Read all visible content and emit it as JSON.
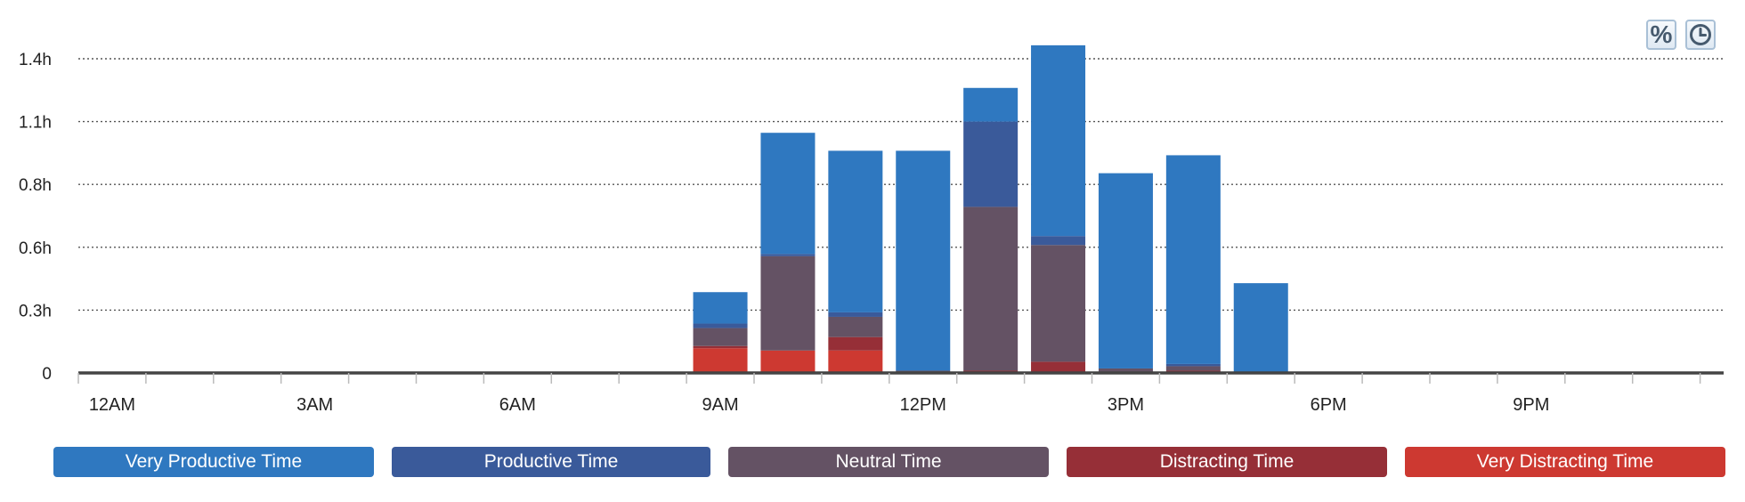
{
  "toolbar": {
    "percent_label": "%",
    "percent_icon": "percent-icon",
    "clock_icon": "clock-icon"
  },
  "chart_data": {
    "type": "bar",
    "stacked": true,
    "grid": true,
    "legend_position": "bottom",
    "ylim": [
      0,
      1.4
    ],
    "y_ticks": [
      {
        "value": 0,
        "label": "0"
      },
      {
        "value": 0.28,
        "label": "0.3h"
      },
      {
        "value": 0.56,
        "label": "0.6h"
      },
      {
        "value": 0.84,
        "label": "0.8h"
      },
      {
        "value": 1.12,
        "label": "1.1h"
      },
      {
        "value": 1.4,
        "label": "1.4h"
      }
    ],
    "x_tick_labels": [
      {
        "hour": 0,
        "label": "12AM"
      },
      {
        "hour": 3,
        "label": "3AM"
      },
      {
        "hour": 6,
        "label": "6AM"
      },
      {
        "hour": 9,
        "label": "9AM"
      },
      {
        "hour": 12,
        "label": "12PM"
      },
      {
        "hour": 15,
        "label": "3PM"
      },
      {
        "hour": 18,
        "label": "6PM"
      },
      {
        "hour": 21,
        "label": "9PM"
      }
    ],
    "categories": [
      0,
      1,
      2,
      3,
      4,
      5,
      6,
      7,
      8,
      9,
      10,
      11,
      12,
      13,
      14,
      15,
      16,
      17,
      18,
      19,
      20,
      21,
      22,
      23
    ],
    "series": [
      {
        "name": "Very Distracting Time",
        "color": "#cd3931",
        "values": [
          0,
          0,
          0,
          0,
          0,
          0,
          0,
          0,
          0,
          0.11,
          0.1,
          0.1,
          0,
          0,
          0,
          0,
          0,
          0,
          0,
          0,
          0,
          0,
          0,
          0
        ]
      },
      {
        "name": "Distracting Time",
        "color": "#962f37",
        "values": [
          0,
          0,
          0,
          0,
          0,
          0,
          0,
          0,
          0,
          0.01,
          0,
          0.06,
          0,
          0.01,
          0.05,
          0,
          0.01,
          0,
          0,
          0,
          0,
          0,
          0,
          0
        ]
      },
      {
        "name": "Neutral Time",
        "color": "#645264",
        "values": [
          0,
          0,
          0,
          0,
          0,
          0,
          0,
          0,
          0,
          0.08,
          0.42,
          0.09,
          0.01,
          0.73,
          0.52,
          0.02,
          0.02,
          0,
          0,
          0,
          0,
          0,
          0,
          0
        ]
      },
      {
        "name": "Productive Time",
        "color": "#3a5a9a",
        "values": [
          0,
          0,
          0,
          0,
          0,
          0,
          0,
          0,
          0,
          0.02,
          0.01,
          0.02,
          0,
          0.38,
          0.04,
          0,
          0.01,
          0,
          0,
          0,
          0,
          0,
          0,
          0
        ]
      },
      {
        "name": "Very Productive Time",
        "color": "#2f78c0",
        "values": [
          0,
          0,
          0,
          0,
          0,
          0,
          0,
          0,
          0,
          0.14,
          0.54,
          0.72,
          0.98,
          0.15,
          0.85,
          0.87,
          0.93,
          0.4,
          0,
          0,
          0,
          0,
          0,
          0
        ]
      }
    ]
  },
  "legend": [
    {
      "label": "Very Productive Time",
      "color": "#2f78c0"
    },
    {
      "label": "Productive Time",
      "color": "#3a5a9a"
    },
    {
      "label": "Neutral Time",
      "color": "#645264"
    },
    {
      "label": "Distracting Time",
      "color": "#962f37"
    },
    {
      "label": "Very Distracting Time",
      "color": "#cd3931"
    }
  ]
}
